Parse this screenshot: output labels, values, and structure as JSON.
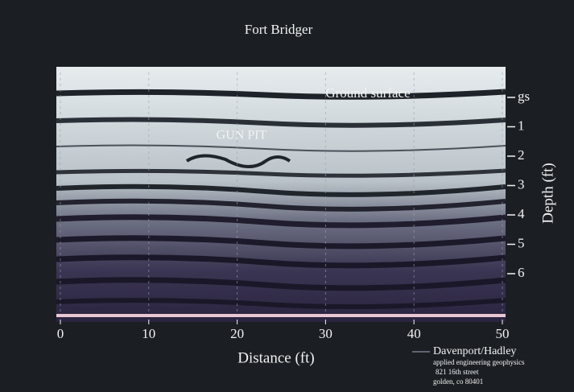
{
  "chart_data": {
    "type": "radargram",
    "title": "Fort Bridger",
    "x_label": "Distance (ft)",
    "y_label": "Depth (ft)",
    "xlim": [
      0,
      50
    ],
    "xticks": [
      0,
      10,
      20,
      30,
      40,
      50
    ],
    "ylim": [
      0,
      6
    ],
    "yticks": [
      {
        "value": 0,
        "label": "gs"
      },
      1,
      2,
      3,
      4,
      5,
      6
    ],
    "grid": true,
    "annotations": [
      "Ground surface",
      "GUN PIT"
    ],
    "credit": [
      "Davenport/Hadley",
      "applied engineering geophysics",
      "821 16th street",
      "golden, co 80401"
    ]
  }
}
